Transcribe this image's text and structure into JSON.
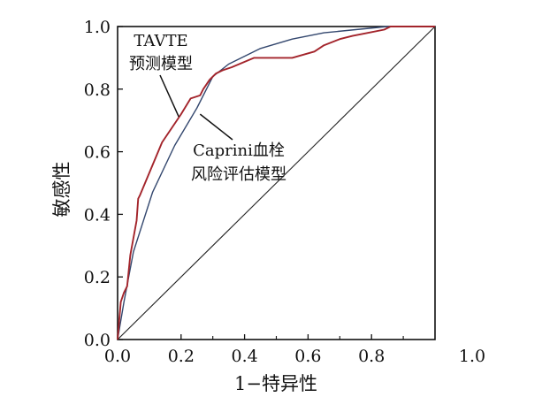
{
  "chart_data": {
    "type": "line",
    "title": "",
    "xlabel": "1−特异性",
    "ylabel": "敏感性",
    "xlim": [
      0,
      1
    ],
    "ylim": [
      0,
      1
    ],
    "x_ticks": [
      "0.0",
      "0.2",
      "0.4",
      "0.6",
      "0.8",
      "1.0"
    ],
    "y_ticks": [
      "0.0",
      "0.2",
      "0.4",
      "0.6",
      "0.8",
      "1.0"
    ],
    "grid": false,
    "legend": "none",
    "reference_line": {
      "x": [
        0,
        1
      ],
      "y": [
        0,
        1
      ],
      "color": "#222222"
    },
    "series": [
      {
        "color": "#a3242b",
        "x": [
          0.0,
          0.01,
          0.02,
          0.03,
          0.04,
          0.06,
          0.065,
          0.07,
          0.14,
          0.2,
          0.23,
          0.26,
          0.27,
          0.29,
          0.31,
          0.33,
          0.36,
          0.43,
          0.55,
          0.62,
          0.65,
          0.7,
          0.74,
          0.79,
          0.84,
          0.86,
          1.0
        ],
        "y": [
          0.0,
          0.12,
          0.15,
          0.17,
          0.27,
          0.38,
          0.45,
          0.46,
          0.63,
          0.72,
          0.77,
          0.78,
          0.8,
          0.83,
          0.85,
          0.86,
          0.87,
          0.9,
          0.9,
          0.92,
          0.94,
          0.96,
          0.97,
          0.98,
          0.99,
          1.0,
          1.0
        ]
      },
      {
        "color": "#33476e",
        "x": [
          0.0,
          0.02,
          0.05,
          0.11,
          0.18,
          0.25,
          0.3,
          0.35,
          0.45,
          0.55,
          0.65,
          0.75,
          0.85,
          1.0
        ],
        "y": [
          0.0,
          0.12,
          0.28,
          0.47,
          0.62,
          0.74,
          0.84,
          0.88,
          0.93,
          0.96,
          0.98,
          0.99,
          1.0,
          1.0
        ]
      }
    ],
    "annotations": [
      {
        "lines": [
          "TAVTE",
          "预测模型"
        ],
        "x": 0.19,
        "y": 0.72
      },
      {
        "lines": [
          "Caprini血栓",
          "风险评估模型"
        ],
        "x": 0.3,
        "y": 0.68
      }
    ]
  }
}
